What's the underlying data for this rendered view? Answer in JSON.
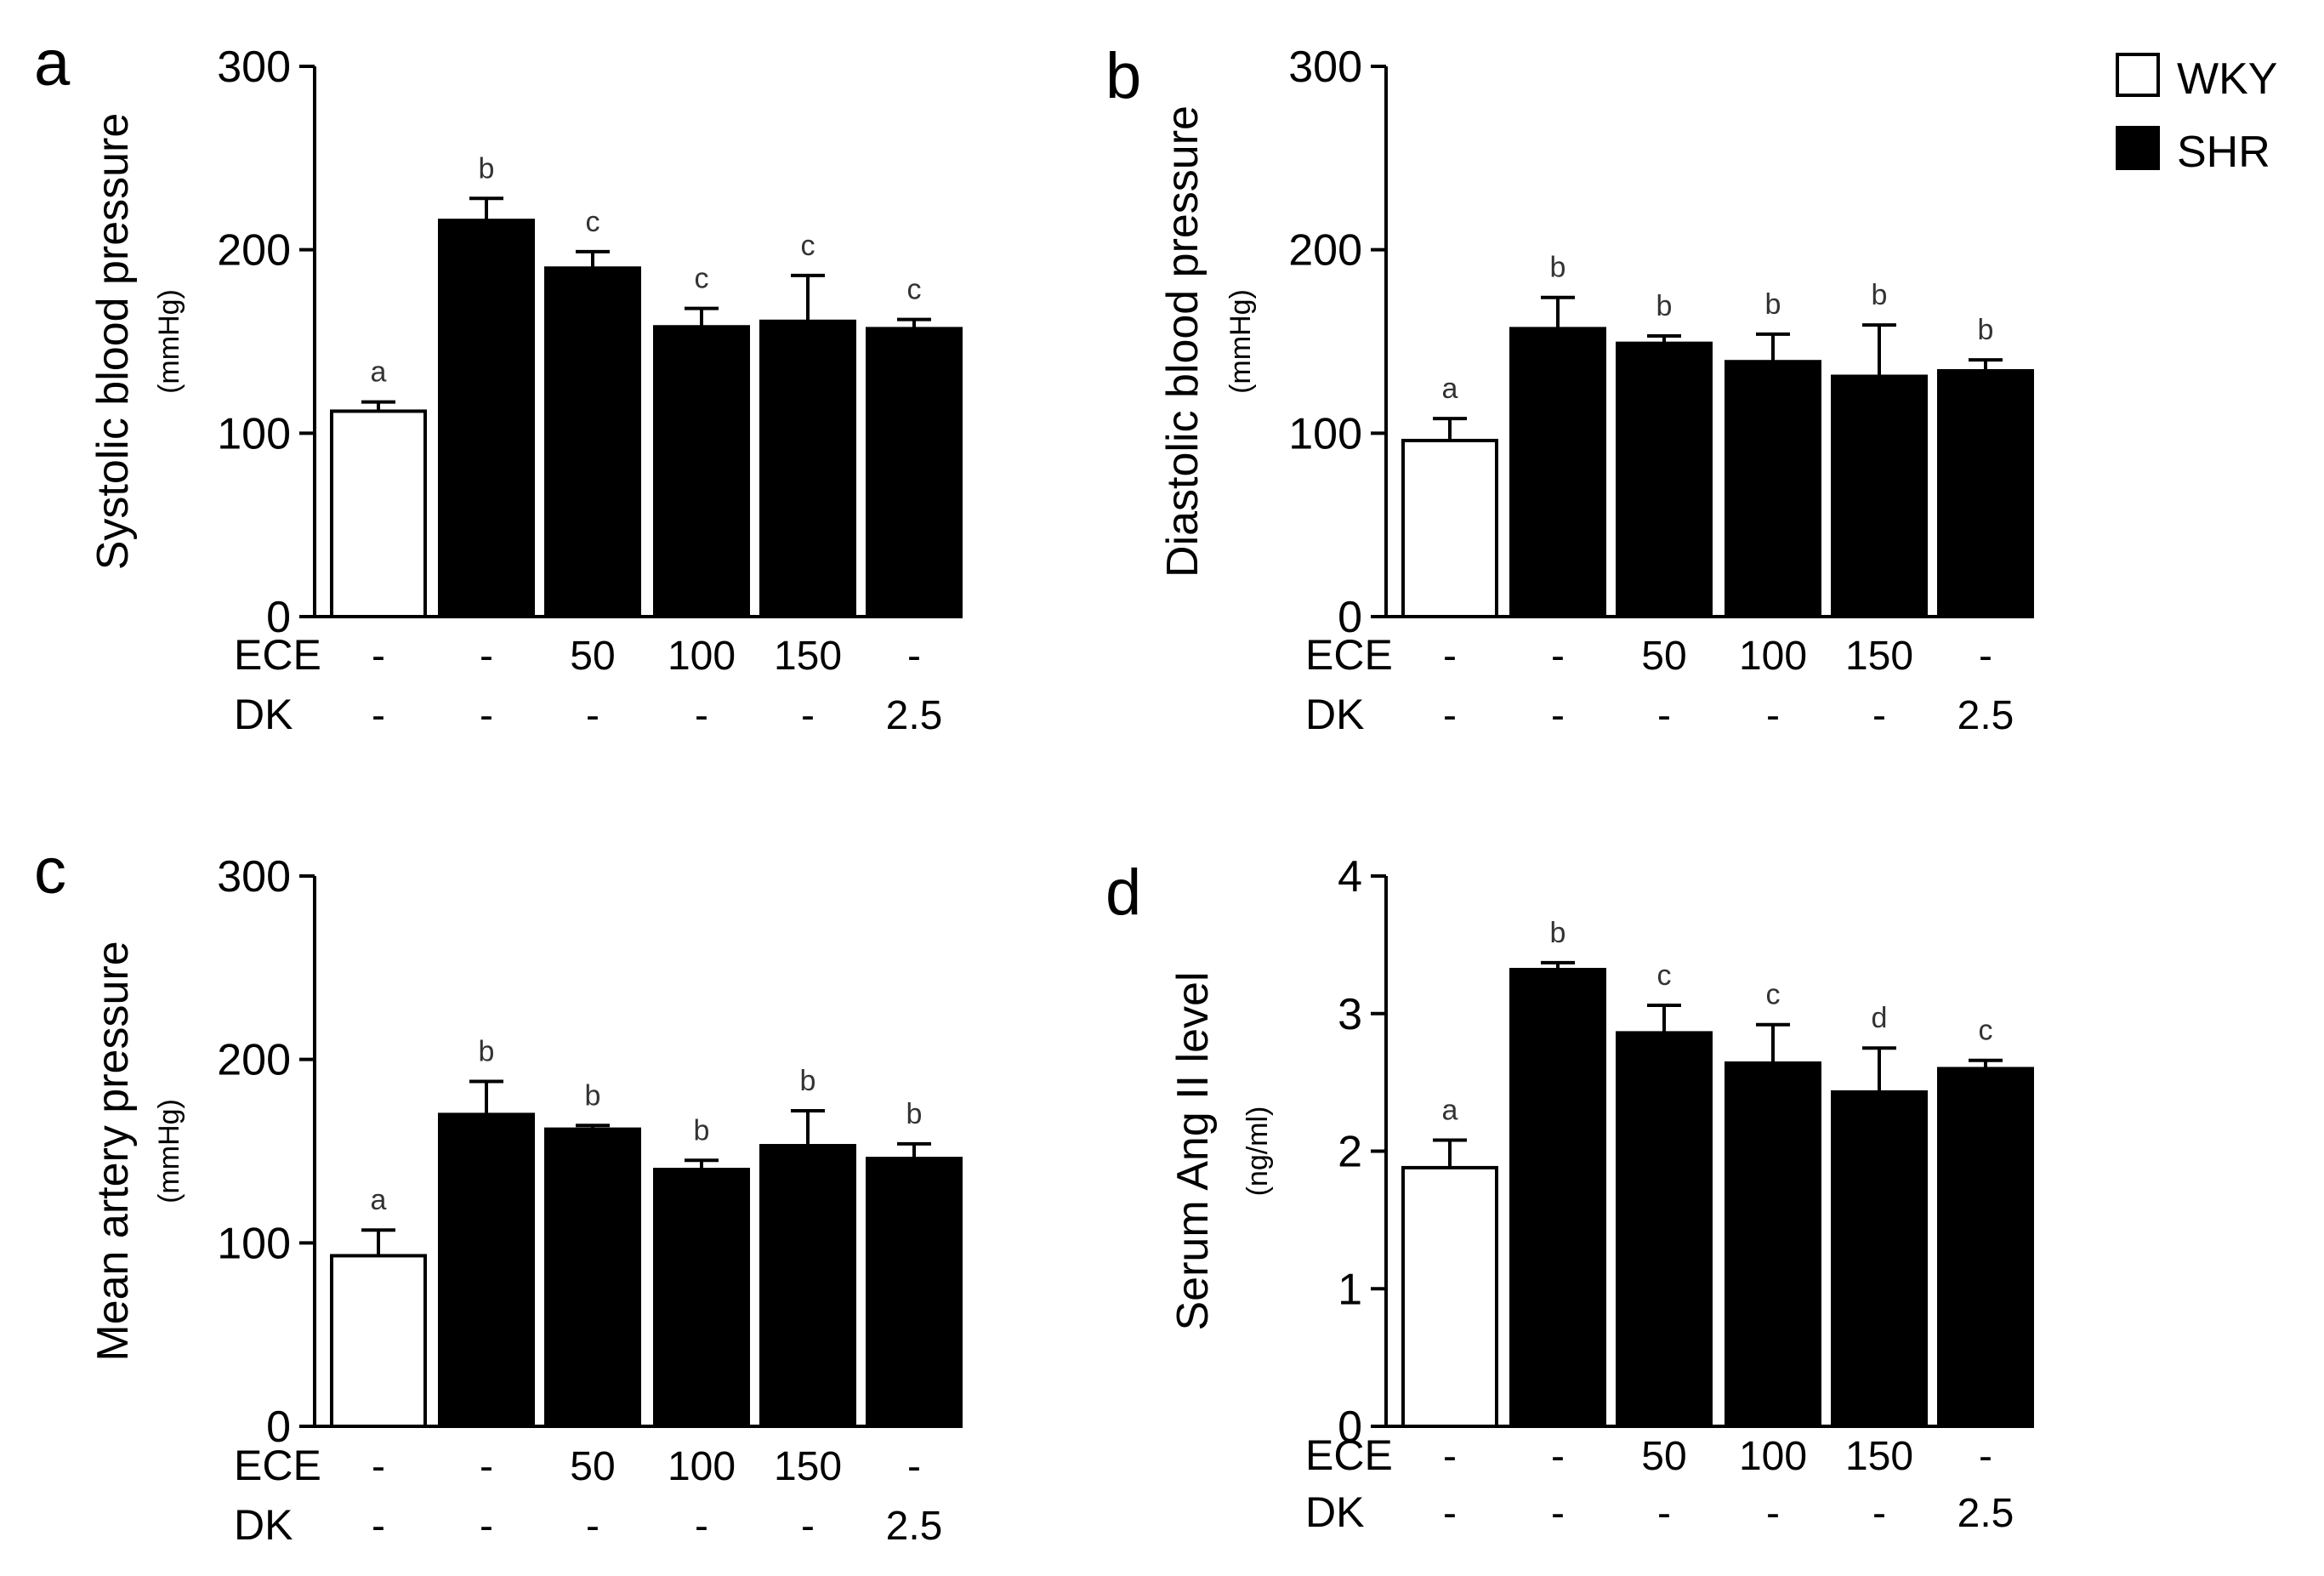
{
  "legend": {
    "items": [
      {
        "label": "WKY",
        "fill": "#ffffff"
      },
      {
        "label": "SHR",
        "fill": "#000000"
      }
    ]
  },
  "colors": {
    "wky": "#ffffff",
    "shr": "#000000",
    "axis": "#000000"
  },
  "chart_data": [
    {
      "panel": "a",
      "type": "bar",
      "ylabel": "Systolic blood pressure",
      "yunit": "(mmHg)",
      "ylim": [
        0,
        300
      ],
      "yticks": [
        "0",
        "100",
        "200",
        "300"
      ],
      "yticks_values": [
        0,
        100,
        200,
        300
      ],
      "row_labels": [
        "ECE",
        "DK"
      ],
      "ece": [
        "-",
        "-",
        "50",
        "100",
        "150",
        "-"
      ],
      "dk": [
        "-",
        "-",
        "-",
        "-",
        "-",
        "2.5"
      ],
      "groups": [
        "WKY",
        "SHR",
        "SHR",
        "SHR",
        "SHR",
        "SHR"
      ],
      "values": [
        112,
        216,
        190,
        158,
        161,
        157
      ],
      "errors": [
        5,
        12,
        9,
        10,
        25,
        5
      ],
      "significance": [
        "a",
        "b",
        "c",
        "c",
        "c",
        "c"
      ]
    },
    {
      "panel": "b",
      "type": "bar",
      "ylabel": "Diastolic blood pressure",
      "yunit": "(mmHg)",
      "ylim": [
        0,
        300
      ],
      "yticks": [
        "0",
        "100",
        "200",
        "300"
      ],
      "yticks_values": [
        0,
        100,
        200,
        300
      ],
      "row_labels": [
        "ECE",
        "DK"
      ],
      "ece": [
        "-",
        "-",
        "50",
        "100",
        "150",
        "-"
      ],
      "dk": [
        "-",
        "-",
        "-",
        "-",
        "-",
        "2.5"
      ],
      "groups": [
        "WKY",
        "SHR",
        "SHR",
        "SHR",
        "SHR",
        "SHR"
      ],
      "values": [
        96,
        157,
        149,
        139,
        131,
        134
      ],
      "errors": [
        12,
        17,
        4,
        15,
        28,
        6
      ],
      "significance": [
        "a",
        "b",
        "b",
        "b",
        "b",
        "b"
      ]
    },
    {
      "panel": "c",
      "type": "bar",
      "ylabel": "Mean artery pressure",
      "yunit": "(mmHg)",
      "ylim": [
        0,
        300
      ],
      "yticks": [
        "0",
        "100",
        "200",
        "300"
      ],
      "yticks_values": [
        0,
        100,
        200,
        300
      ],
      "row_labels": [
        "ECE",
        "DK"
      ],
      "ece": [
        "-",
        "-",
        "50",
        "100",
        "150",
        "-"
      ],
      "dk": [
        "-",
        "-",
        "-",
        "-",
        "-",
        "2.5"
      ],
      "groups": [
        "WKY",
        "SHR",
        "SHR",
        "SHR",
        "SHR",
        "SHR"
      ],
      "values": [
        93,
        170,
        162,
        140,
        153,
        146
      ],
      "errors": [
        14,
        18,
        2,
        5,
        19,
        8
      ],
      "significance": [
        "a",
        "b",
        "b",
        "b",
        "b",
        "b"
      ]
    },
    {
      "panel": "d",
      "type": "bar",
      "ylabel": "Serum Ang II level",
      "yunit": "(ng/ml)",
      "ylim": [
        0,
        4
      ],
      "yticks": [
        "0",
        "1",
        "2",
        "3",
        "4"
      ],
      "yticks_values": [
        0,
        1,
        2,
        3,
        4
      ],
      "row_labels": [
        "ECE",
        "DK"
      ],
      "ece": [
        "-",
        "-",
        "50",
        "100",
        "150",
        "-"
      ],
      "dk": [
        "-",
        "-",
        "-",
        "-",
        "-",
        "2.5"
      ],
      "groups": [
        "WKY",
        "SHR",
        "SHR",
        "SHR",
        "SHR",
        "SHR"
      ],
      "values": [
        1.88,
        3.32,
        2.86,
        2.64,
        2.43,
        2.6
      ],
      "errors": [
        0.2,
        0.05,
        0.2,
        0.28,
        0.32,
        0.06
      ],
      "significance": [
        "a",
        "b",
        "c",
        "c",
        "d",
        "c"
      ]
    }
  ]
}
